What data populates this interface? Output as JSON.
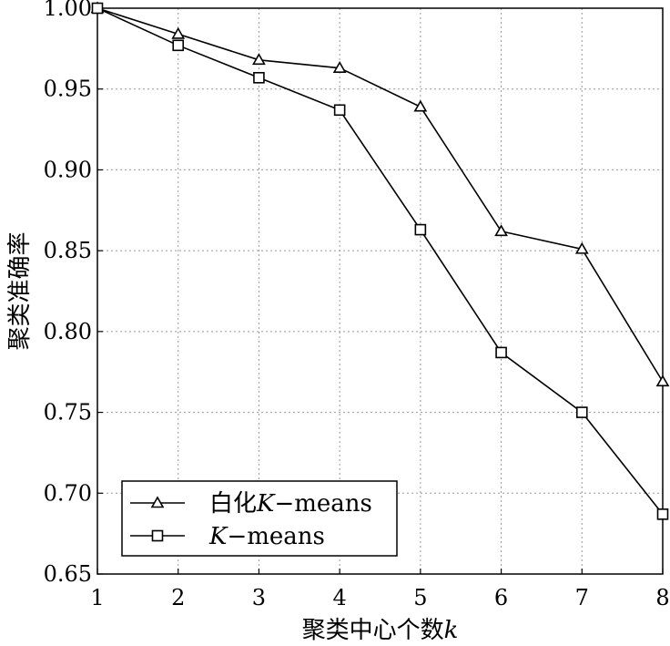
{
  "chart_data": {
    "type": "line",
    "xlabel_main": "聚类中心个数",
    "xlabel_var": "k",
    "ylabel": "聚类准确率",
    "x": [
      1,
      2,
      3,
      4,
      5,
      6,
      7,
      8
    ],
    "xlim": [
      1,
      8
    ],
    "ylim": [
      0.65,
      1.0
    ],
    "xticks": [
      "1",
      "2",
      "3",
      "4",
      "5",
      "6",
      "7",
      "8"
    ],
    "yticks": [
      "0.65",
      "0.70",
      "0.75",
      "0.80",
      "0.85",
      "0.90",
      "0.95",
      "1.00"
    ],
    "ytick_values": [
      0.65,
      0.7,
      0.75,
      0.8,
      0.85,
      0.9,
      0.95,
      1.0
    ],
    "grid": true,
    "legend_position": "bottom-left",
    "series": [
      {
        "name_prefix": "白化",
        "name_var": "K",
        "name_suffix": "−means",
        "marker": "triangle",
        "values": [
          1.0,
          0.984,
          0.968,
          0.963,
          0.939,
          0.862,
          0.851,
          0.769
        ]
      },
      {
        "name_prefix": "",
        "name_var": "K",
        "name_suffix": "−means",
        "marker": "square",
        "values": [
          1.0,
          0.977,
          0.957,
          0.937,
          0.863,
          0.787,
          0.75,
          0.687
        ]
      }
    ]
  }
}
